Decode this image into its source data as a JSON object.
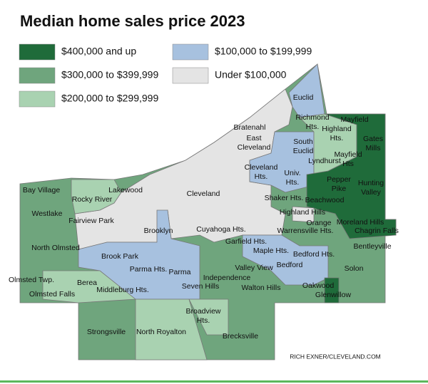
{
  "title": "Median home sales price 2023",
  "legend": [
    {
      "label": "$400,000 and up",
      "color": "#1f6b3a"
    },
    {
      "label": "$300,000 to $399,999",
      "color": "#6fa57d"
    },
    {
      "label": "$200,000 to $299,999",
      "color": "#a9d2b1"
    },
    {
      "label": "$100,000 to $199,999",
      "color": "#a7c1df"
    },
    {
      "label": "Under $100,000",
      "color": "#e4e4e4"
    }
  ],
  "labels": [
    "Euclid",
    "Bratenahl",
    [
      "Richmond",
      "Hts."
    ],
    "Mayfield",
    [
      "Highland",
      "Hts."
    ],
    [
      "Gates",
      "Mills"
    ],
    [
      "East",
      "Cleveland"
    ],
    [
      "South",
      "Euclid"
    ],
    [
      "Mayfield",
      "Hts"
    ],
    "Lyndhurst",
    [
      "Cleveland",
      "Hts."
    ],
    [
      "Univ.",
      "Hts."
    ],
    [
      "Pepper",
      "Pike"
    ],
    [
      "Hunting",
      "Valley"
    ],
    "Shaker Hts.",
    "Beachwood",
    "Bay Village",
    "Lakewood",
    "Rocky River",
    "Cleveland",
    "Westlake",
    "Fairview Park",
    "Highland Hills",
    "Orange",
    "Moreland Hills",
    "Warrensville Hts.",
    "Chagrin Falls",
    "Cuyahoga Hts.",
    "Brooklyn",
    "Garfield Hts.",
    "Bentleyville",
    "North Olmsted",
    "Maple Hts.",
    "Bedford Hts.",
    "Brook Park",
    "Valley View",
    "Bedford",
    "Solon",
    "Parma Hts.",
    "Parma",
    "Olmsted Twp.",
    "Berea",
    "Independence",
    "Seven Hills",
    "Walton Hills",
    "Oakwood",
    "Glenwillow",
    "Olmsted Falls",
    "Middleburg Hts.",
    [
      "Broadview",
      "Hts."
    ],
    "Strongsville",
    "North Royalton",
    "Brecksville"
  ],
  "credit": "RICH EXNER/CLEVELAND.COM"
}
